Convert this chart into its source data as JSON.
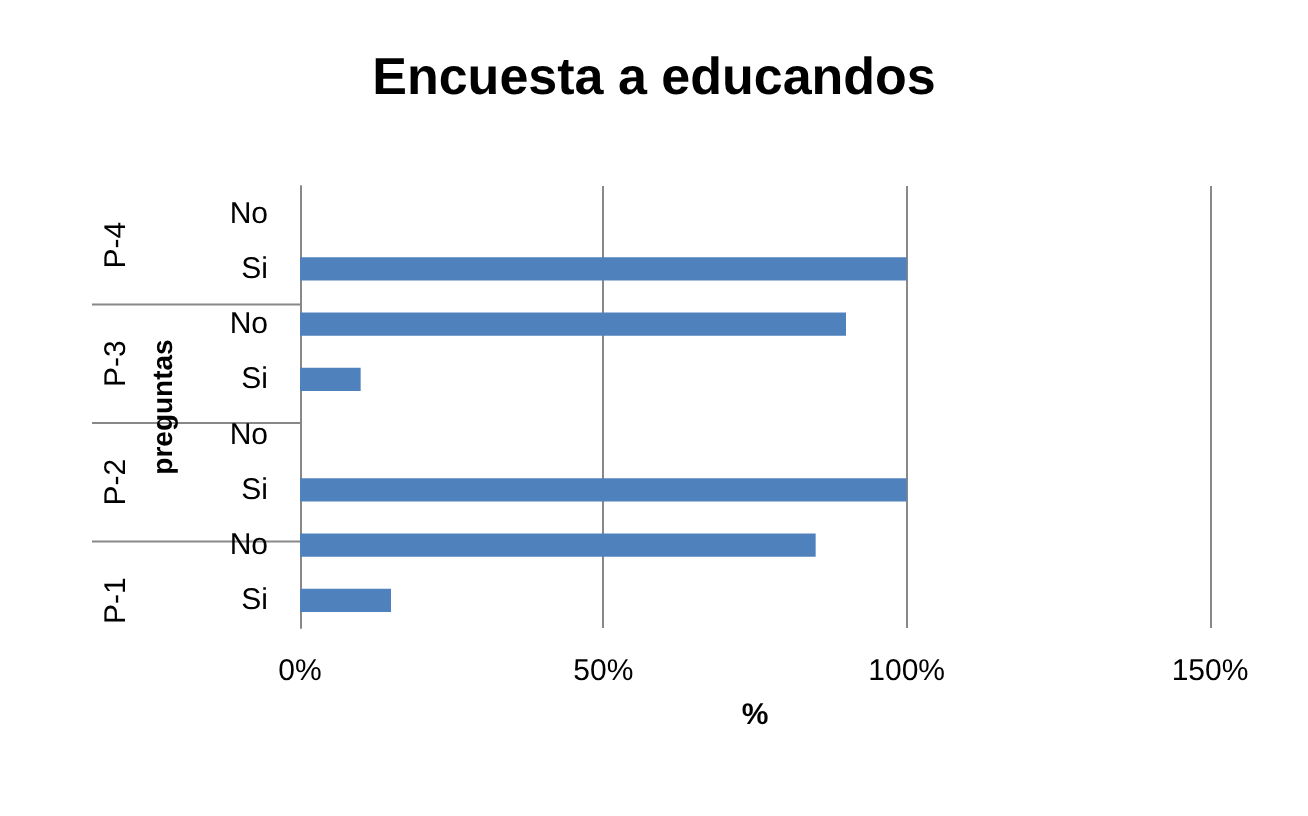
{
  "chart_data": {
    "type": "bar",
    "orientation": "horizontal",
    "title": "Encuesta a educandos",
    "xlabel": "%",
    "ylabel": "preguntas",
    "categories": [
      "No",
      "Si",
      "No",
      "Si",
      "No",
      "Si",
      "No",
      "Si"
    ],
    "values": [
      0,
      100,
      90,
      10,
      0,
      100,
      85,
      15
    ],
    "color": "#4f81bd",
    "xlim": [
      0,
      150
    ],
    "xticks": [
      {
        "value": 0,
        "label": "0%"
      },
      {
        "value": 50,
        "label": "50%"
      },
      {
        "value": 100,
        "label": "100%"
      },
      {
        "value": 150,
        "label": "150%"
      }
    ],
    "grid": "x",
    "annotations": [
      "P-4",
      "P-3",
      "P-2",
      "P-1"
    ]
  }
}
